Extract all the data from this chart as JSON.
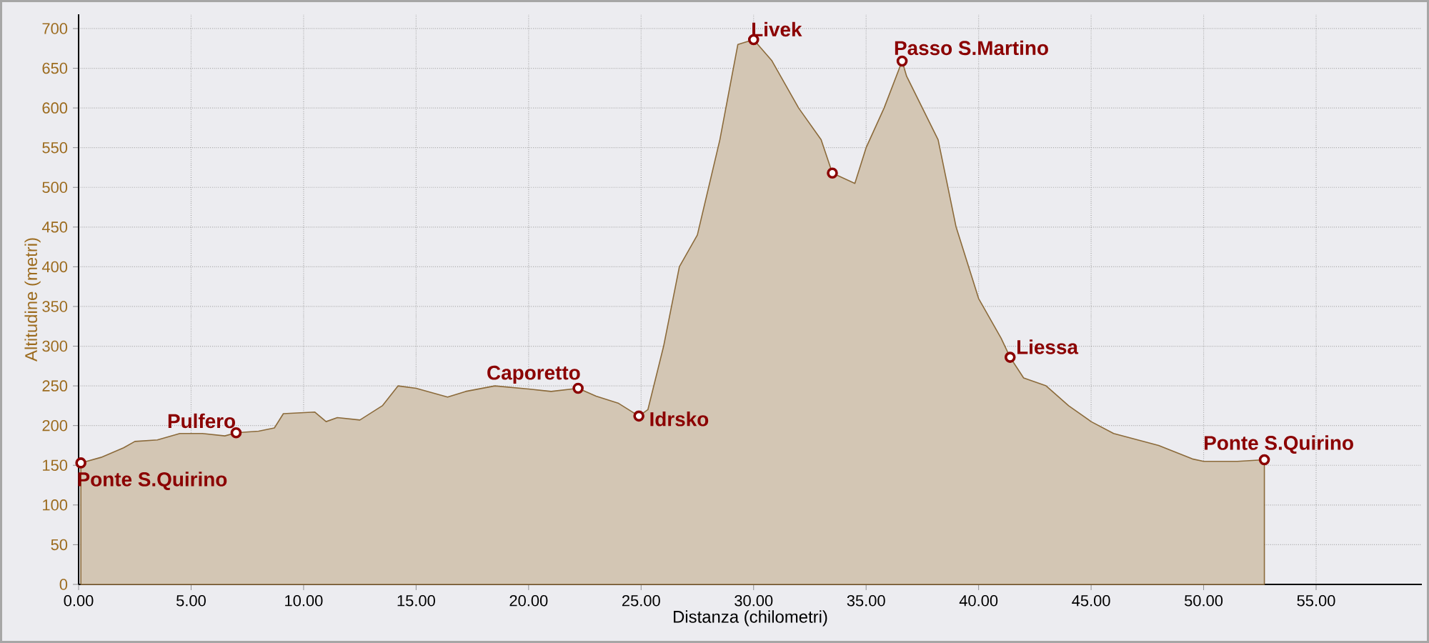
{
  "chart_data": {
    "type": "area",
    "xlabel": "Distanza (chilometri)",
    "ylabel": "Altitudine (metri)",
    "xlim": [
      0,
      59.7
    ],
    "ylim": [
      0,
      718
    ],
    "xticks": [
      {
        "value": 0,
        "label": "0.00"
      },
      {
        "value": 5,
        "label": "5.00"
      },
      {
        "value": 10,
        "label": "10.00"
      },
      {
        "value": 15,
        "label": "15.00"
      },
      {
        "value": 20,
        "label": "20.00"
      },
      {
        "value": 25,
        "label": "25.00"
      },
      {
        "value": 30,
        "label": "30.00"
      },
      {
        "value": 35,
        "label": "35.00"
      },
      {
        "value": 40,
        "label": "40.00"
      },
      {
        "value": 45,
        "label": "45.00"
      },
      {
        "value": 50,
        "label": "50.00"
      },
      {
        "value": 55,
        "label": "55.00"
      }
    ],
    "yticks": [
      0,
      50,
      100,
      150,
      200,
      250,
      300,
      350,
      400,
      450,
      500,
      550,
      600,
      650,
      700
    ],
    "grid": true,
    "series": [
      {
        "color": "#8b6a3a",
        "x": [
          0.1,
          1.0,
          2.0,
          2.5,
          3.5,
          4.5,
          5.5,
          6.5,
          7.0,
          8.0,
          8.7,
          9.1,
          10.5,
          11.0,
          11.5,
          12.5,
          13.5,
          14.2,
          15.0,
          16.4,
          17.2,
          18.5,
          20.0,
          21.0,
          22.2,
          23.0,
          24.0,
          24.9,
          25.3,
          26.0,
          26.7,
          27.5,
          28.5,
          29.3,
          30.0,
          30.8,
          32.0,
          33.0,
          33.5,
          34.5,
          35.0,
          35.8,
          36.6,
          36.8,
          38.2,
          39.0,
          40.0,
          41.0,
          41.4,
          42.0,
          43.0,
          44.0,
          45.0,
          46.0,
          48.0,
          49.5,
          50.0,
          51.5,
          52.7
        ],
        "values": [
          153,
          160,
          172,
          180,
          182,
          190,
          190,
          187,
          191,
          193,
          197,
          215,
          217,
          205,
          210,
          207,
          225,
          250,
          247,
          236,
          243,
          250,
          246,
          243,
          247,
          237,
          228,
          212,
          220,
          300,
          400,
          440,
          560,
          680,
          686,
          660,
          600,
          560,
          518,
          505,
          550,
          600,
          659,
          640,
          560,
          450,
          360,
          310,
          286,
          260,
          250,
          225,
          205,
          190,
          175,
          158,
          155,
          155,
          157
        ]
      },
      {
        "type": "scatter",
        "color": "#8b0000",
        "marker": "circle",
        "x": [
          0.1,
          7.0,
          22.2,
          24.9,
          30.0,
          33.5,
          36.6,
          41.4,
          52.7
        ],
        "values": [
          153,
          191,
          247,
          212,
          686,
          518,
          659,
          286,
          157
        ]
      }
    ],
    "annotations": [
      {
        "text": "Ponte S.Quirino",
        "x": 0.1,
        "y": 153
      },
      {
        "text": "Pulfero",
        "x": 7.0,
        "y": 191
      },
      {
        "text": "Caporetto",
        "x": 22.2,
        "y": 247
      },
      {
        "text": "Idrsko",
        "x": 24.9,
        "y": 212
      },
      {
        "text": "Livek",
        "x": 30.0,
        "y": 686
      },
      {
        "text": "Passo S.Martino",
        "x": 36.6,
        "y": 659
      },
      {
        "text": "Liessa",
        "x": 41.4,
        "y": 286
      },
      {
        "text": "Ponte S.Quirino",
        "x": 52.7,
        "y": 157
      }
    ]
  }
}
